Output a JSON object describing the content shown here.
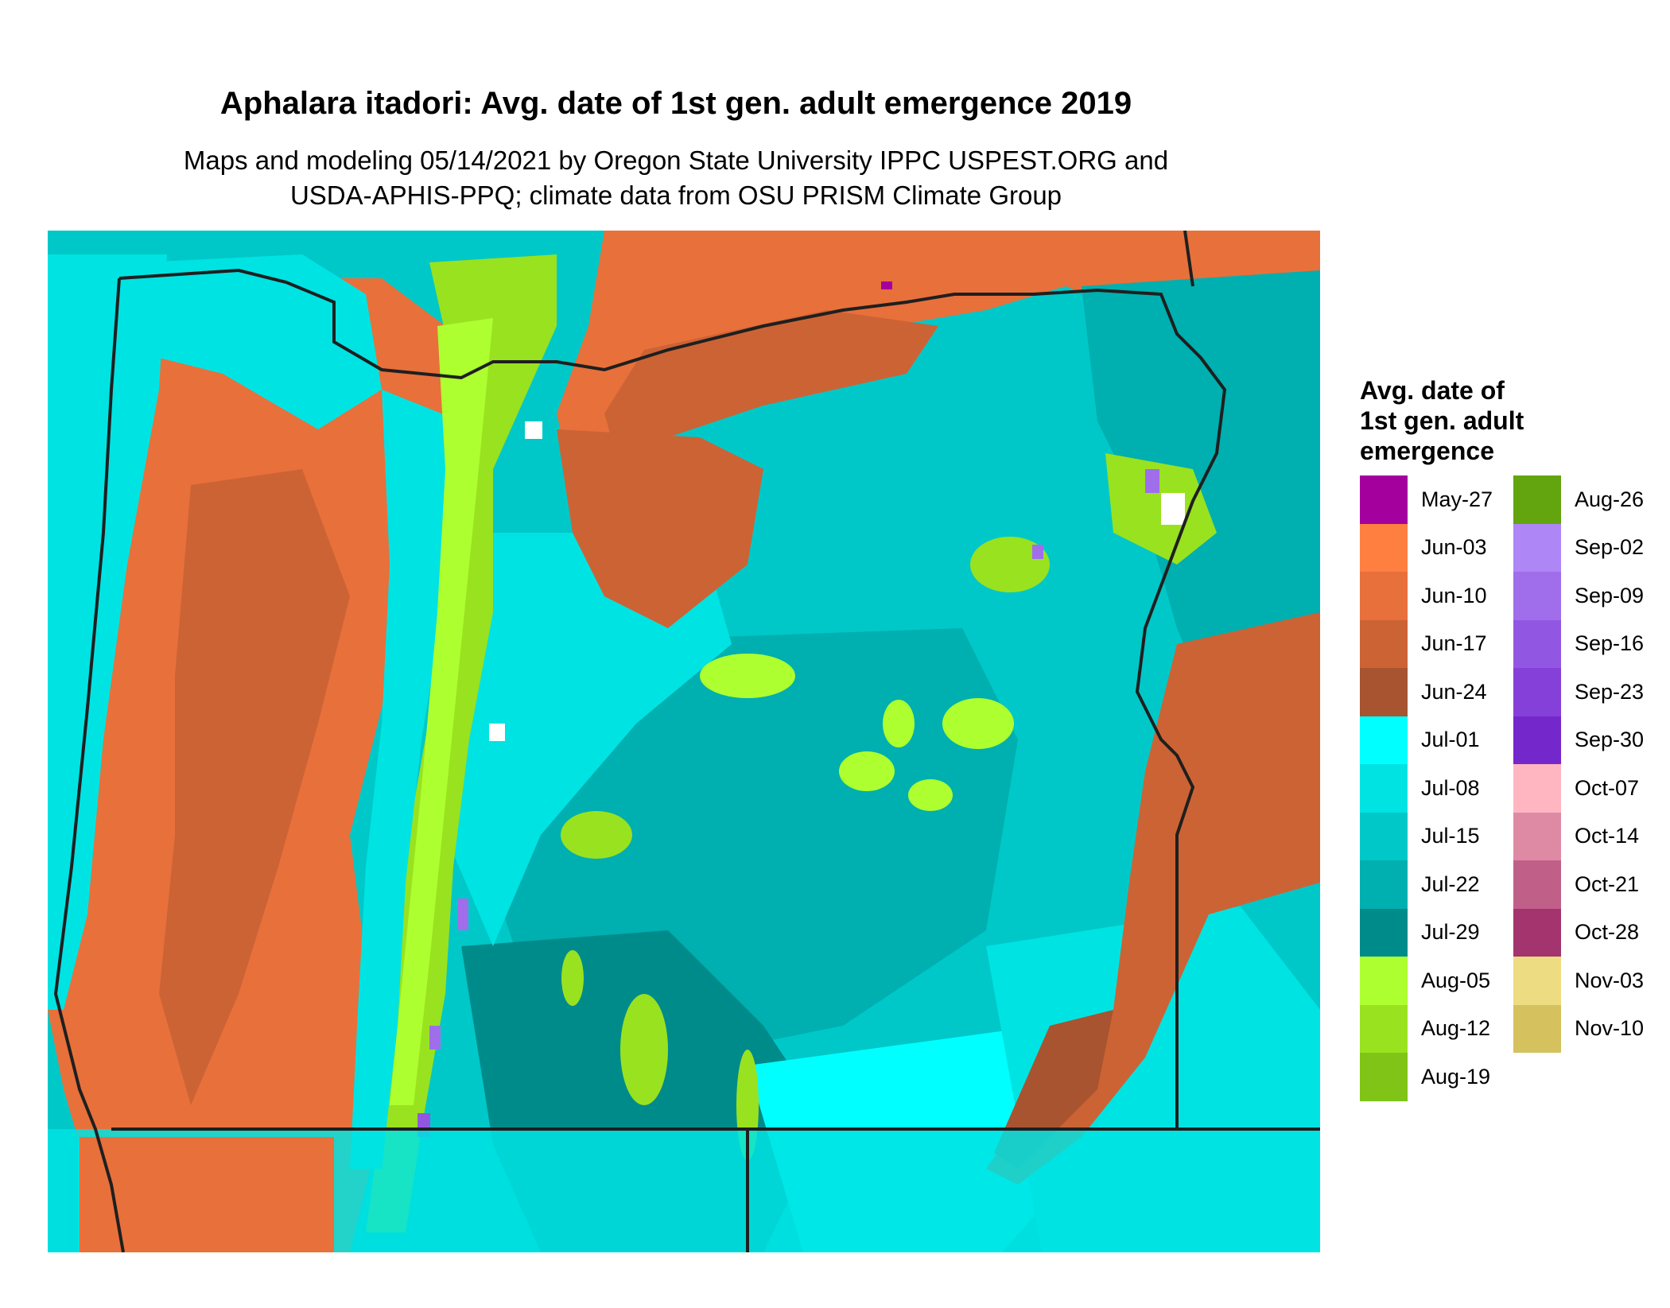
{
  "header": {
    "title": "Aphalara itadori: Avg. date of 1st gen. adult emergence 2019",
    "subtitle_line1": "Maps and modeling 05/14/2021 by Oregon State University IPPC USPEST.ORG and",
    "subtitle_line2": "USDA-APHIS-PPQ; climate data from OSU PRISM Climate Group"
  },
  "legend": {
    "title_line1": "Avg. date of",
    "title_line2": "1st gen. adult",
    "title_line3": "emergence",
    "column1": [
      {
        "label": "May-27",
        "color": "#A3009E"
      },
      {
        "label": "Jun-03",
        "color": "#FF7F41"
      },
      {
        "label": "Jun-10",
        "color": "#E8703B"
      },
      {
        "label": "Jun-17",
        "color": "#CC6335"
      },
      {
        "label": "Jun-24",
        "color": "#A85430"
      },
      {
        "label": "Jul-01",
        "color": "#00FFFF"
      },
      {
        "label": "Jul-08",
        "color": "#00E3E3"
      },
      {
        "label": "Jul-15",
        "color": "#00C8C8"
      },
      {
        "label": "Jul-22",
        "color": "#00AFAF"
      },
      {
        "label": "Jul-29",
        "color": "#008B8B"
      },
      {
        "label": "Aug-05",
        "color": "#ADFF2F"
      },
      {
        "label": "Aug-12",
        "color": "#99E21F"
      },
      {
        "label": "Aug-19",
        "color": "#7FC416"
      }
    ],
    "column2": [
      {
        "label": "Aug-26",
        "color": "#62A50E"
      },
      {
        "label": "Sep-02",
        "color": "#AE86F5"
      },
      {
        "label": "Sep-09",
        "color": "#A06EEB"
      },
      {
        "label": "Sep-16",
        "color": "#9257E2"
      },
      {
        "label": "Sep-23",
        "color": "#8440D8"
      },
      {
        "label": "Sep-30",
        "color": "#7428CC"
      },
      {
        "label": "Oct-07",
        "color": "#FFB6C1"
      },
      {
        "label": "Oct-14",
        "color": "#DE8AA4"
      },
      {
        "label": "Oct-21",
        "color": "#C06089"
      },
      {
        "label": "Oct-28",
        "color": "#A3346E"
      },
      {
        "label": "Nov-03",
        "color": "#EEDC82"
      },
      {
        "label": "Nov-10",
        "color": "#D6C15F"
      }
    ]
  },
  "map": {
    "region": "Oregon",
    "boundary_color": "#1F1F1F",
    "fill_note_colors": {
      "coast_west": "#E8703B",
      "cascades": "#99E21F",
      "high_desert": "#00C8C8",
      "columbia_basin": "#CC6335",
      "southeast": "#00E3E3"
    }
  }
}
